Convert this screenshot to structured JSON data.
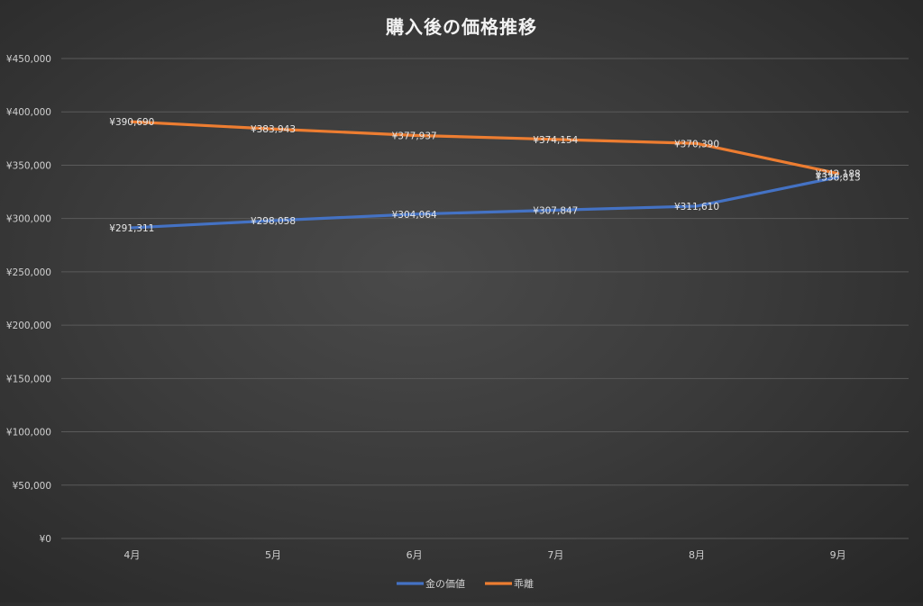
{
  "chart_data": {
    "type": "line",
    "title": "購入後の価格推移",
    "xlabel": "",
    "ylabel": "",
    "categories": [
      "4月",
      "5月",
      "6月",
      "7月",
      "8月",
      "9月"
    ],
    "series": [
      {
        "name": "金の価値",
        "color": "#4472c4",
        "values": [
          291311,
          298058,
          304064,
          307847,
          311610,
          338813
        ],
        "labels": [
          "¥291,311",
          "¥298,058",
          "¥304,064",
          "¥307,847",
          "¥311,610",
          "¥338,813"
        ]
      },
      {
        "name": "乖離",
        "color": "#ed7d31",
        "values": [
          390690,
          383943,
          377937,
          374154,
          370390,
          342188
        ],
        "labels": [
          "¥390,690",
          "¥383,943",
          "¥377,937",
          "¥374,154",
          "¥370,390",
          "¥342,188"
        ]
      }
    ],
    "ylim": [
      0,
      450000
    ],
    "yticks": [
      0,
      50000,
      100000,
      150000,
      200000,
      250000,
      300000,
      350000,
      400000,
      450000
    ],
    "ytick_labels": [
      "¥0",
      "¥50,000",
      "¥100,000",
      "¥150,000",
      "¥200,000",
      "¥250,000",
      "¥300,000",
      "¥350,000",
      "¥400,000",
      "¥450,000"
    ],
    "grid": true,
    "legend_position": "bottom"
  }
}
